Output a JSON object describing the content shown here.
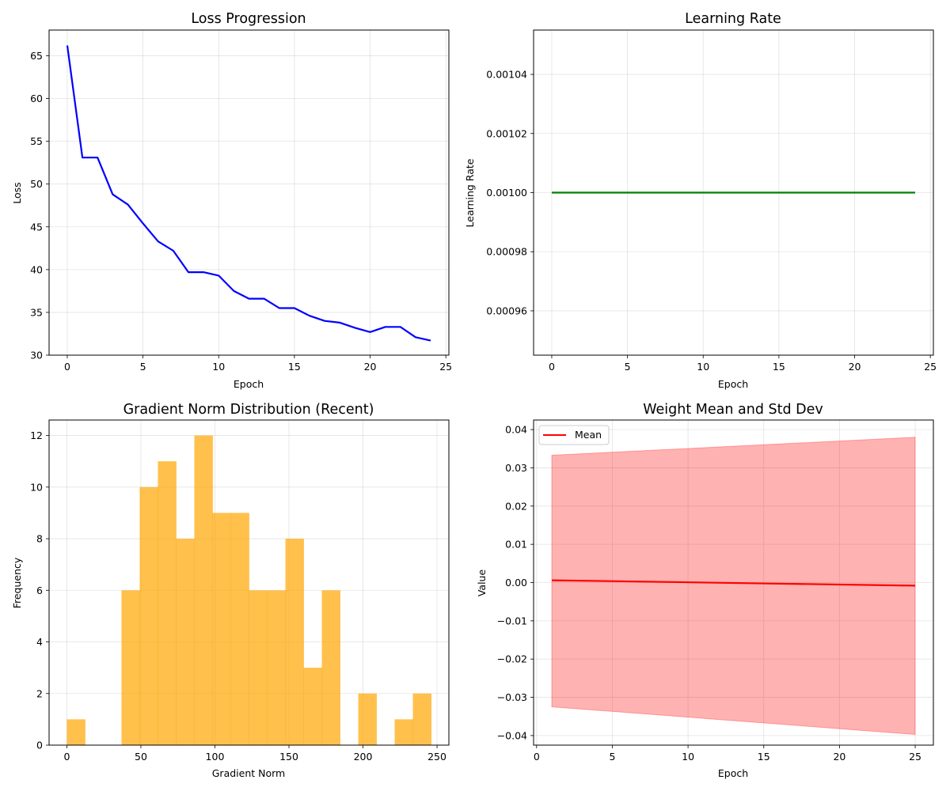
{
  "chart_data": [
    {
      "type": "line",
      "title": "Loss Progression",
      "xlabel": "Epoch",
      "ylabel": "Loss",
      "xlim": [
        -1.2,
        25.2
      ],
      "ylim": [
        30,
        68
      ],
      "xticks": [
        0,
        5,
        10,
        15,
        20,
        25
      ],
      "yticks": [
        30,
        35,
        40,
        45,
        50,
        55,
        60,
        65
      ],
      "grid": true,
      "series": [
        {
          "color": "#0000ff",
          "x": [
            0,
            1,
            2,
            3,
            4,
            5,
            6,
            7,
            8,
            9,
            10,
            11,
            12,
            13,
            14,
            15,
            16,
            17,
            18,
            19,
            20,
            21,
            22,
            23,
            24
          ],
          "y": [
            66.2,
            53.1,
            53.1,
            48.8,
            47.6,
            45.4,
            43.3,
            42.2,
            39.7,
            39.7,
            39.3,
            37.5,
            36.6,
            36.6,
            35.5,
            35.5,
            34.6,
            34.0,
            33.8,
            33.2,
            32.7,
            33.3,
            33.3,
            32.1,
            31.7
          ]
        }
      ]
    },
    {
      "type": "line",
      "title": "Learning Rate",
      "xlabel": "Epoch",
      "ylabel": "Learning Rate",
      "xlim": [
        -1.2,
        25.2
      ],
      "ylim": [
        0.000945,
        0.001055
      ],
      "xticks": [
        0,
        5,
        10,
        15,
        20,
        25
      ],
      "yticks": [
        0.00096,
        0.00098,
        0.001,
        0.00102,
        0.00104
      ],
      "ytick_labels": [
        "0.00096",
        "0.00098",
        "0.00100",
        "0.00102",
        "0.00104"
      ],
      "grid": true,
      "series": [
        {
          "color": "#008000",
          "x": [
            0,
            1,
            2,
            3,
            4,
            5,
            6,
            7,
            8,
            9,
            10,
            11,
            12,
            13,
            14,
            15,
            16,
            17,
            18,
            19,
            20,
            21,
            22,
            23,
            24
          ],
          "y": [
            0.001,
            0.001,
            0.001,
            0.001,
            0.001,
            0.001,
            0.001,
            0.001,
            0.001,
            0.001,
            0.001,
            0.001,
            0.001,
            0.001,
            0.001,
            0.001,
            0.001,
            0.001,
            0.001,
            0.001,
            0.001,
            0.001,
            0.001,
            0.001,
            0.001
          ]
        }
      ]
    },
    {
      "type": "bar",
      "title": "Gradient Norm Distribution (Recent)",
      "xlabel": "Gradient Norm",
      "ylabel": "Frequency",
      "xlim": [
        -12,
        258
      ],
      "ylim": [
        0,
        12.6
      ],
      "xticks": [
        0,
        50,
        100,
        150,
        200,
        250
      ],
      "yticks": [
        0,
        2,
        4,
        6,
        8,
        10,
        12
      ],
      "grid": true,
      "color": "#ffa500",
      "bin_width": 12.3,
      "bin_starts": [
        0,
        12.3,
        24.6,
        36.9,
        49.2,
        61.5,
        73.8,
        86.1,
        98.4,
        110.7,
        123,
        135.3,
        147.6,
        159.9,
        172.2,
        184.5,
        196.8,
        209.1,
        221.4,
        233.7
      ],
      "values": [
        1,
        0,
        0,
        6,
        10,
        11,
        8,
        12,
        9,
        9,
        6,
        6,
        8,
        3,
        6,
        0,
        2,
        0,
        1,
        2
      ]
    },
    {
      "type": "area",
      "title": "Weight Mean and Std Dev",
      "xlabel": "Epoch",
      "ylabel": "Value",
      "xlim": [
        -0.2,
        26.2
      ],
      "ylim": [
        -0.0425,
        0.0425
      ],
      "xticks": [
        0,
        5,
        10,
        15,
        20,
        25
      ],
      "yticks": [
        -0.04,
        -0.03,
        -0.02,
        -0.01,
        0,
        0.01,
        0.02,
        0.03,
        0.04
      ],
      "ytick_labels": [
        "−0.04",
        "−0.03",
        "−0.02",
        "−0.01",
        "0.00",
        "0.01",
        "0.02",
        "0.03",
        "0.04"
      ],
      "grid": true,
      "legend": "top-left",
      "series": [
        {
          "name": "Mean",
          "color": "#ff0000",
          "x": [
            1,
            25
          ],
          "y": [
            0.0006,
            -0.0008
          ]
        }
      ],
      "band": {
        "color": "#ff0000",
        "x": [
          1,
          25
        ],
        "upper": [
          0.0333,
          0.038
        ],
        "lower": [
          -0.0325,
          -0.0397
        ]
      }
    }
  ]
}
